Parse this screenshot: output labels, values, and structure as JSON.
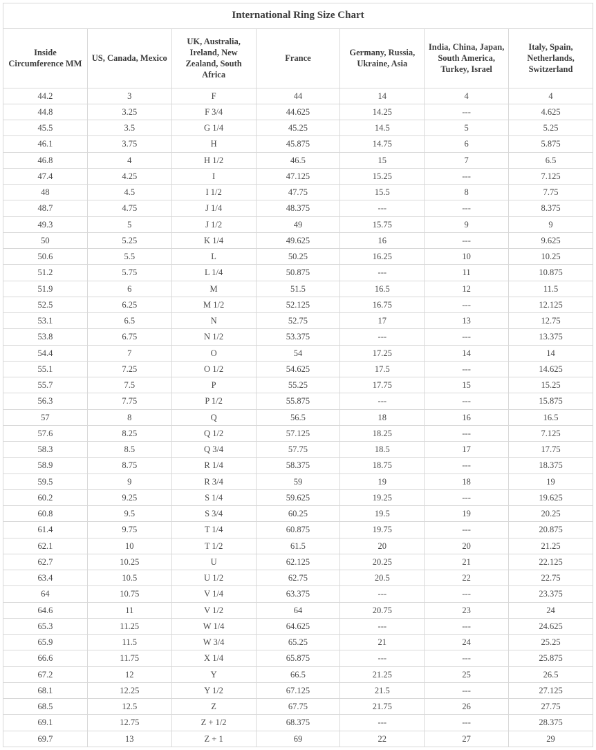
{
  "table": {
    "title": "International Ring Size Chart",
    "columns": [
      "Inside Circumference MM",
      "US, Canada, Mexico",
      "UK, Australia, Ireland, New Zealand, South Africa",
      "France",
      "Germany, Russia, Ukraine, Asia",
      "India, China, Japan, South America, Turkey, Israel",
      "Italy, Spain, Netherlands, Switzerland"
    ],
    "rows": [
      [
        "44.2",
        "3",
        "F",
        "44",
        "14",
        "4",
        "4"
      ],
      [
        "44.8",
        "3.25",
        "F 3/4",
        "44.625",
        "14.25",
        "---",
        "4.625"
      ],
      [
        "45.5",
        "3.5",
        "G 1/4",
        "45.25",
        "14.5",
        "5",
        "5.25"
      ],
      [
        "46.1",
        "3.75",
        "H",
        "45.875",
        "14.75",
        "6",
        "5.875"
      ],
      [
        "46.8",
        "4",
        "H 1/2",
        "46.5",
        "15",
        "7",
        "6.5"
      ],
      [
        "47.4",
        "4.25",
        "I",
        "47.125",
        "15.25",
        "---",
        "7.125"
      ],
      [
        "48",
        "4.5",
        "I 1/2",
        "47.75",
        "15.5",
        "8",
        "7.75"
      ],
      [
        "48.7",
        "4.75",
        "J 1/4",
        "48.375",
        "---",
        "---",
        "8.375"
      ],
      [
        "49.3",
        "5",
        "J 1/2",
        "49",
        "15.75",
        "9",
        "9"
      ],
      [
        "50",
        "5.25",
        "K 1/4",
        "49.625",
        "16",
        "---",
        "9.625"
      ],
      [
        "50.6",
        "5.5",
        "L",
        "50.25",
        "16.25",
        "10",
        "10.25"
      ],
      [
        "51.2",
        "5.75",
        "L 1/4",
        "50.875",
        "---",
        "11",
        "10.875"
      ],
      [
        "51.9",
        "6",
        "M",
        "51.5",
        "16.5",
        "12",
        "11.5"
      ],
      [
        "52.5",
        "6.25",
        "M 1/2",
        "52.125",
        "16.75",
        "---",
        "12.125"
      ],
      [
        "53.1",
        "6.5",
        "N",
        "52.75",
        "17",
        "13",
        "12.75"
      ],
      [
        "53.8",
        "6.75",
        "N 1/2",
        "53.375",
        "---",
        "---",
        "13.375"
      ],
      [
        "54.4",
        "7",
        "O",
        "54",
        "17.25",
        "14",
        "14"
      ],
      [
        "55.1",
        "7.25",
        "O 1/2",
        "54.625",
        "17.5",
        "---",
        "14.625"
      ],
      [
        "55.7",
        "7.5",
        "P",
        "55.25",
        "17.75",
        "15",
        "15.25"
      ],
      [
        "56.3",
        "7.75",
        "P 1/2",
        "55.875",
        "---",
        "---",
        "15.875"
      ],
      [
        "57",
        "8",
        "Q",
        "56.5",
        "18",
        "16",
        "16.5"
      ],
      [
        "57.6",
        "8.25",
        "Q 1/2",
        "57.125",
        "18.25",
        "---",
        "7.125"
      ],
      [
        "58.3",
        "8.5",
        "Q 3/4",
        "57.75",
        "18.5",
        "17",
        "17.75"
      ],
      [
        "58.9",
        "8.75",
        "R 1/4",
        "58.375",
        "18.75",
        "---",
        "18.375"
      ],
      [
        "59.5",
        "9",
        "R 3/4",
        "59",
        "19",
        "18",
        "19"
      ],
      [
        "60.2",
        "9.25",
        "S 1/4",
        "59.625",
        "19.25",
        "---",
        "19.625"
      ],
      [
        "60.8",
        "9.5",
        "S 3/4",
        "60.25",
        "19.5",
        "19",
        "20.25"
      ],
      [
        "61.4",
        "9.75",
        "T 1/4",
        "60.875",
        "19.75",
        "---",
        "20.875"
      ],
      [
        "62.1",
        "10",
        "T 1/2",
        "61.5",
        "20",
        "20",
        "21.25"
      ],
      [
        "62.7",
        "10.25",
        "U",
        "62.125",
        "20.25",
        "21",
        "22.125"
      ],
      [
        "63.4",
        "10.5",
        "U 1/2",
        "62.75",
        "20.5",
        "22",
        "22.75"
      ],
      [
        "64",
        "10.75",
        "V 1/4",
        "63.375",
        "---",
        "---",
        "23.375"
      ],
      [
        "64.6",
        "11",
        "V 1/2",
        "64",
        "20.75",
        "23",
        "24"
      ],
      [
        "65.3",
        "11.25",
        "W 1/4",
        "64.625",
        "---",
        "---",
        "24.625"
      ],
      [
        "65.9",
        "11.5",
        "W 3/4",
        "65.25",
        "21",
        "24",
        "25.25"
      ],
      [
        "66.6",
        "11.75",
        "X 1/4",
        "65.875",
        "---",
        "---",
        "25.875"
      ],
      [
        "67.2",
        "12",
        "Y",
        "66.5",
        "21.25",
        "25",
        "26.5"
      ],
      [
        "68.1",
        "12.25",
        "Y 1/2",
        "67.125",
        "21.5",
        "---",
        "27.125"
      ],
      [
        "68.5",
        "12.5",
        "Z",
        "67.75",
        "21.75",
        "26",
        "27.75"
      ],
      [
        "69.1",
        "12.75",
        "Z + 1/2",
        "68.375",
        "---",
        "---",
        "28.375"
      ],
      [
        "69.7",
        "13",
        "Z + 1",
        "69",
        "22",
        "27",
        "29"
      ]
    ]
  },
  "colors": {
    "border": "#d8d8d8",
    "text": "#4a4a4a",
    "background": "#ffffff"
  }
}
